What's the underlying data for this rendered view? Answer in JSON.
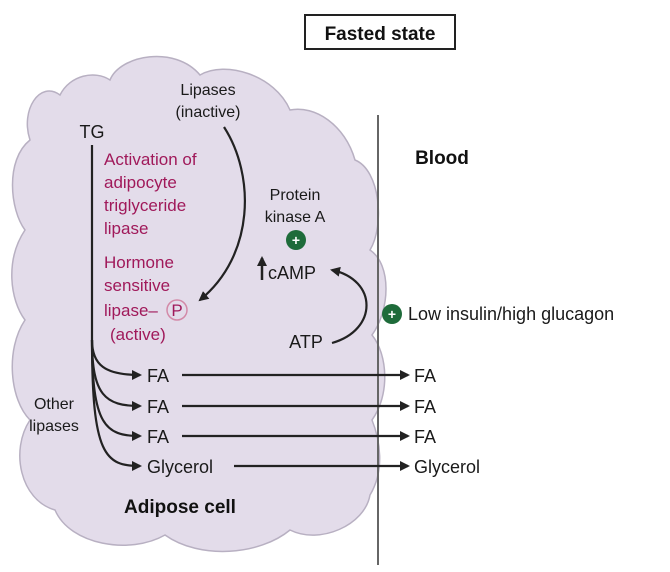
{
  "title": "Fasted state",
  "labels": {
    "blood": "Blood",
    "adipose_cell": "Adipose cell",
    "tg": "TG",
    "lipases_inactive_1": "Lipases",
    "lipases_inactive_2": "(inactive)",
    "activation_1": "Activation of",
    "activation_2": "adipocyte",
    "activation_3": "triglyceride",
    "activation_4": "lipase",
    "hsl_1": "Hormone",
    "hsl_2": "sensitive",
    "hsl_3": "lipase–",
    "hsl_p": "P",
    "hsl_4": "(active)",
    "pka_1": "Protein",
    "pka_2": "kinase A",
    "camp": "cAMP",
    "atp": "ATP",
    "low_insulin": "Low insulin/high glucagon",
    "other_lipases_1": "Other",
    "other_lipases_2": "lipases",
    "plus": "+"
  },
  "products_in_cell": [
    "FA",
    "FA",
    "FA",
    "Glycerol"
  ],
  "products_in_blood": [
    "FA",
    "FA",
    "FA",
    "Glycerol"
  ],
  "colors": {
    "cell_fill": "#e3dcea",
    "cell_stroke": "#b8b0c2",
    "magenta_text": "#a0195a",
    "plus_green": "#1e6b3a"
  }
}
